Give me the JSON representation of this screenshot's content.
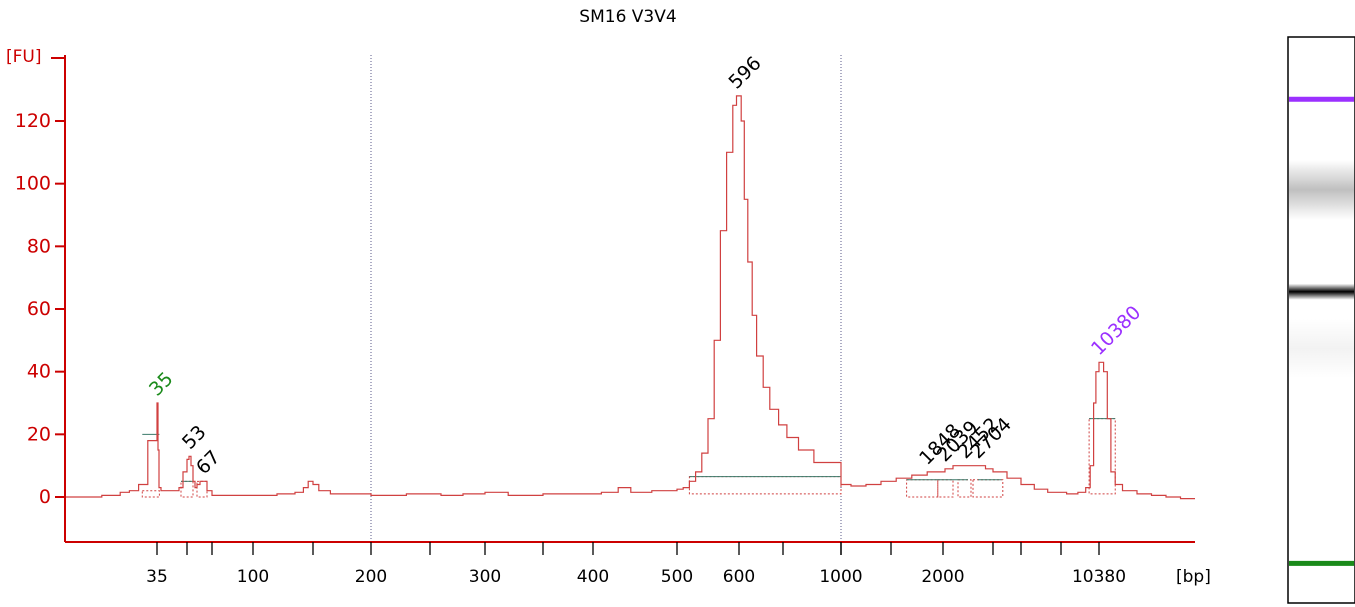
{
  "chart_data": {
    "type": "line",
    "title": "SM16 V3V4",
    "ylabel": "[FU]",
    "xlabel": "[bp]",
    "ylim": [
      -14,
      140
    ],
    "y_ticks": [
      0,
      20,
      40,
      60,
      80,
      100,
      120
    ],
    "x_ticks": [
      {
        "label": "35",
        "value": 35
      },
      {
        "label": "",
        "value": 50
      },
      {
        "label": "",
        "value": 75
      },
      {
        "label": "100",
        "value": 100
      },
      {
        "label": "",
        "value": 150
      },
      {
        "label": "200",
        "value": 200
      },
      {
        "label": "",
        "value": 250
      },
      {
        "label": "300",
        "value": 300
      },
      {
        "label": "",
        "value": 350
      },
      {
        "label": "400",
        "value": 400
      },
      {
        "label": "500",
        "value": 500
      },
      {
        "label": "600",
        "value": 600
      },
      {
        "label": "",
        "value": 700
      },
      {
        "label": "",
        "value": 850
      },
      {
        "label": "1000",
        "value": 1000
      },
      {
        "label": "",
        "value": 1500
      },
      {
        "label": "2000",
        "value": 2000
      },
      {
        "label": "",
        "value": 3000
      },
      {
        "label": "",
        "value": 4000
      },
      {
        "label": "",
        "value": 7000
      },
      {
        "label": "10380",
        "value": 10380
      }
    ],
    "x_anchors": [
      {
        "bp": 30,
        "pos": 0
      },
      {
        "bp": 35,
        "pos": 92
      },
      {
        "bp": 50,
        "pos": 122
      },
      {
        "bp": 75,
        "pos": 147
      },
      {
        "bp": 100,
        "pos": 188
      },
      {
        "bp": 150,
        "pos": 248
      },
      {
        "bp": 200,
        "pos": 306
      },
      {
        "bp": 250,
        "pos": 365
      },
      {
        "bp": 300,
        "pos": 420
      },
      {
        "bp": 350,
        "pos": 478
      },
      {
        "bp": 400,
        "pos": 528
      },
      {
        "bp": 500,
        "pos": 612
      },
      {
        "bp": 600,
        "pos": 674
      },
      {
        "bp": 700,
        "pos": 718
      },
      {
        "bp": 850,
        "pos": 776
      },
      {
        "bp": 1000,
        "pos": 776
      },
      {
        "bp": 1500,
        "pos": 826
      },
      {
        "bp": 2000,
        "pos": 878
      },
      {
        "bp": 3000,
        "pos": 928
      },
      {
        "bp": 4000,
        "pos": 956
      },
      {
        "bp": 7000,
        "pos": 996
      },
      {
        "bp": 10380,
        "pos": 1034
      },
      {
        "bp": 17000,
        "pos": 1130
      }
    ],
    "vertical_gridlines_bp": [
      200,
      1000
    ],
    "peaks": [
      {
        "label": "35",
        "bp": 35,
        "fu": 30,
        "color": "#1a8a1a"
      },
      {
        "label": "53",
        "bp": 53,
        "fu": 13,
        "color": "#000000"
      },
      {
        "label": "67",
        "bp": 67,
        "fu": 5,
        "color": "#000000"
      },
      {
        "label": "596",
        "bp": 596,
        "fu": 128,
        "color": "#000000"
      },
      {
        "label": "1848",
        "bp": 1848,
        "fu": 8,
        "color": "#000000"
      },
      {
        "label": "2039",
        "bp": 2039,
        "fu": 9,
        "color": "#000000"
      },
      {
        "label": "2452",
        "bp": 2452,
        "fu": 10,
        "color": "#000000"
      },
      {
        "label": "2704",
        "bp": 2704,
        "fu": 10,
        "color": "#000000"
      },
      {
        "label": "10380",
        "bp": 10380,
        "fu": 43,
        "color": "#9b30ff"
      }
    ],
    "series": [
      {
        "points": [
          [
            30,
            0
          ],
          [
            31,
            0
          ],
          [
            32,
            0.5
          ],
          [
            33,
            1.5
          ],
          [
            33.5,
            2
          ],
          [
            34,
            4
          ],
          [
            34.5,
            18
          ],
          [
            35,
            30
          ],
          [
            35.5,
            15
          ],
          [
            36,
            3
          ],
          [
            37,
            2
          ],
          [
            40,
            2
          ],
          [
            43,
            2
          ],
          [
            46,
            3
          ],
          [
            48,
            8
          ],
          [
            50,
            12
          ],
          [
            52,
            13
          ],
          [
            54,
            10
          ],
          [
            56,
            5
          ],
          [
            58,
            3
          ],
          [
            60,
            4
          ],
          [
            63,
            5
          ],
          [
            67,
            5
          ],
          [
            70,
            2
          ],
          [
            75,
            0.5
          ],
          [
            85,
            0.5
          ],
          [
            100,
            0.5
          ],
          [
            120,
            1
          ],
          [
            135,
            1.5
          ],
          [
            142,
            3
          ],
          [
            146,
            5
          ],
          [
            150,
            4
          ],
          [
            155,
            2
          ],
          [
            165,
            1
          ],
          [
            180,
            1
          ],
          [
            200,
            0.5
          ],
          [
            230,
            1
          ],
          [
            260,
            0.5
          ],
          [
            280,
            1
          ],
          [
            300,
            1.5
          ],
          [
            320,
            0.5
          ],
          [
            350,
            1
          ],
          [
            380,
            1
          ],
          [
            410,
            1.5
          ],
          [
            430,
            3
          ],
          [
            445,
            1.5
          ],
          [
            470,
            2
          ],
          [
            500,
            2.5
          ],
          [
            510,
            3
          ],
          [
            520,
            5
          ],
          [
            530,
            8
          ],
          [
            540,
            14
          ],
          [
            550,
            25
          ],
          [
            560,
            50
          ],
          [
            570,
            85
          ],
          [
            580,
            110
          ],
          [
            590,
            125
          ],
          [
            596,
            128
          ],
          [
            605,
            120
          ],
          [
            612,
            95
          ],
          [
            620,
            75
          ],
          [
            630,
            58
          ],
          [
            640,
            45
          ],
          [
            655,
            35
          ],
          [
            670,
            28
          ],
          [
            690,
            23
          ],
          [
            710,
            19
          ],
          [
            740,
            15
          ],
          [
            780,
            11
          ],
          [
            850,
            7
          ],
          [
            920,
            5
          ],
          [
            1000,
            4
          ],
          [
            1100,
            3.5
          ],
          [
            1250,
            4
          ],
          [
            1400,
            5
          ],
          [
            1550,
            6
          ],
          [
            1700,
            7
          ],
          [
            1848,
            8
          ],
          [
            2039,
            9
          ],
          [
            2200,
            10
          ],
          [
            2452,
            10
          ],
          [
            2704,
            10
          ],
          [
            2850,
            9
          ],
          [
            3000,
            8
          ],
          [
            3500,
            6
          ],
          [
            4000,
            4
          ],
          [
            5000,
            2.5
          ],
          [
            6000,
            1.5
          ],
          [
            7500,
            1
          ],
          [
            8500,
            1.5
          ],
          [
            9200,
            3
          ],
          [
            9600,
            10
          ],
          [
            9900,
            30
          ],
          [
            10100,
            40
          ],
          [
            10380,
            43
          ],
          [
            10700,
            40
          ],
          [
            10950,
            25
          ],
          [
            11200,
            8
          ],
          [
            11500,
            4
          ],
          [
            12000,
            2
          ],
          [
            13000,
            1
          ],
          [
            14000,
            0.5
          ],
          [
            15000,
            0
          ],
          [
            16000,
            -0.5
          ],
          [
            17000,
            -0.5
          ]
        ]
      }
    ],
    "baselines": [
      {
        "bp": [
          34.2,
          36.2
        ],
        "fu": 20,
        "color": "#1a8a1a"
      },
      {
        "bp": [
          47,
          56
        ],
        "fu": 5,
        "color": "#1a8a1a"
      },
      {
        "bp": [
          520,
          900
        ],
        "fu": 6.5,
        "color": "#1a8a1a"
      },
      {
        "bp": [
          1650,
          2500
        ],
        "fu": 5.5,
        "color": "#1a8a1a"
      },
      {
        "bp": [
          2700,
          3300
        ],
        "fu": 5.5,
        "color": "#1a8a1a"
      },
      {
        "bp": [
          9500,
          11500
        ],
        "fu": 25,
        "color": "#1a8a1a"
      }
    ],
    "peak_boxes": [
      {
        "bp": [
          34.2,
          36.2
        ],
        "fu": [
          2,
          0
        ]
      },
      {
        "bp": [
          47,
          56
        ],
        "fu": [
          5,
          0
        ]
      },
      {
        "bp": [
          60,
          70
        ],
        "fu": [
          5,
          0
        ]
      },
      {
        "bp": [
          520,
          920
        ],
        "fu": [
          6.5,
          1
        ]
      },
      {
        "bp": [
          1650,
          1950
        ],
        "fu": [
          5.5,
          0
        ]
      },
      {
        "bp": [
          1950,
          2200
        ],
        "fu": [
          5.5,
          0
        ]
      },
      {
        "bp": [
          2300,
          2560
        ],
        "fu": [
          5.5,
          0
        ]
      },
      {
        "bp": [
          2600,
          3350
        ],
        "fu": [
          5.5,
          0
        ]
      },
      {
        "bp": [
          9500,
          11500
        ],
        "fu": [
          25,
          1
        ]
      }
    ],
    "gel_bands": [
      {
        "position": 0.11,
        "intensity": 1.0,
        "color": "#9b30ff"
      },
      {
        "position": 0.27,
        "intensity": 0.25,
        "color": "#000000"
      },
      {
        "position": 0.45,
        "intensity": 1.0,
        "color": "#000000"
      },
      {
        "position": 0.55,
        "intensity": 0.05,
        "color": "#000000"
      },
      {
        "position": 0.93,
        "intensity": 1.0,
        "color": "#1a8a1a"
      }
    ]
  },
  "colors": {
    "axis": "#cc0000",
    "trace": "#d04040",
    "grid": "#5a5a8a",
    "standard_low": "#1a8a1a",
    "standard_high": "#9b30ff"
  }
}
